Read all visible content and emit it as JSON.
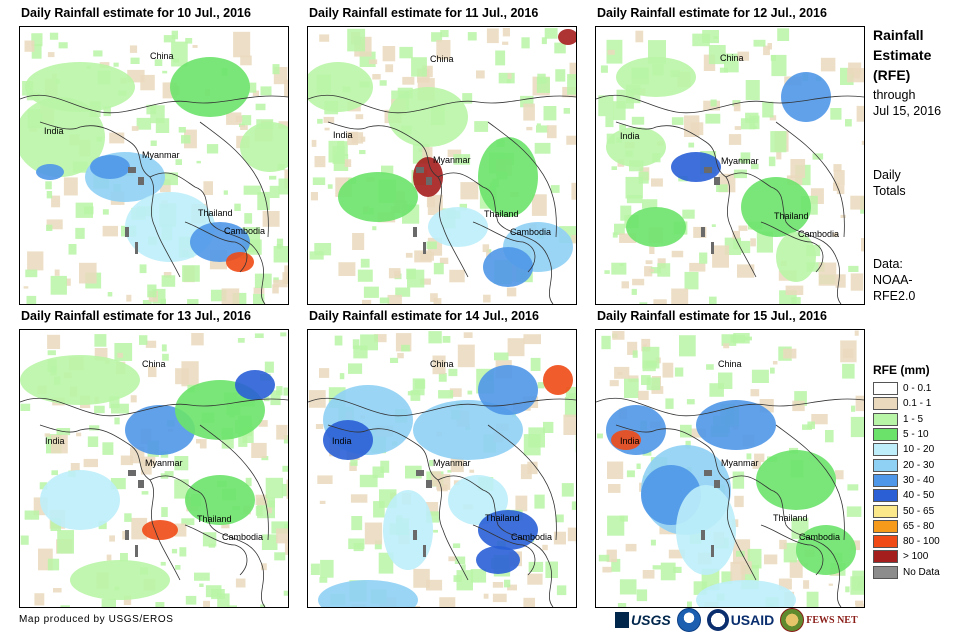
{
  "panels": [
    {
      "title": "Daily Rainfall estimate for 10 Jul., 2016",
      "labels": {
        "china": "China",
        "india": "India",
        "myanmar": "Myanmar",
        "thailand": "Thailand",
        "cambodia": "Cambodia"
      }
    },
    {
      "title": "Daily Rainfall estimate for 11 Jul., 2016",
      "labels": {
        "china": "China",
        "india": "India",
        "myanmar": "Myanmar",
        "thailand": "Thailand",
        "cambodia": "Cambodia"
      }
    },
    {
      "title": "Daily Rainfall estimate for 12 Jul., 2016",
      "labels": {
        "china": "China",
        "india": "India",
        "myanmar": "Myanmar",
        "thailand": "Thailand",
        "cambodia": "Cambodia"
      }
    },
    {
      "title": "Daily Rainfall estimate for 13 Jul., 2016",
      "labels": {
        "china": "China",
        "india": "India",
        "myanmar": "Myanmar",
        "thailand": "Thailand",
        "cambodia": "Cambodia"
      }
    },
    {
      "title": "Daily Rainfall estimate for 14 Jul., 2016",
      "labels": {
        "china": "China",
        "india": "India",
        "myanmar": "Myanmar",
        "thailand": "Thailand",
        "cambodia": "Cambodia"
      }
    },
    {
      "title": "Daily Rainfall estimate for 15 Jul., 2016",
      "labels": {
        "china": "China",
        "india": "India",
        "myanmar": "Myanmar",
        "thailand": "Thailand",
        "cambodia": "Cambodia"
      }
    }
  ],
  "side": {
    "title_line1": "Rainfall",
    "title_line2": "Estimate",
    "title_line3": "(RFE)",
    "through": "through",
    "date": "Jul 15, 2016",
    "daily": "Daily",
    "totals": "Totals",
    "data_label": "Data:",
    "source_line1": "NOAA-",
    "source_line2": "RFE2.0"
  },
  "legend": {
    "title": "RFE (mm)",
    "items": [
      {
        "label": "0 - 0.1",
        "color": "#ffffff"
      },
      {
        "label": "0.1 - 1",
        "color": "#ead9bd"
      },
      {
        "label": "1 - 5",
        "color": "#b9f5a6"
      },
      {
        "label": "5 - 10",
        "color": "#6be36b"
      },
      {
        "label": "10 - 20",
        "color": "#bdeefa"
      },
      {
        "label": "20 - 30",
        "color": "#8fd0f5"
      },
      {
        "label": "30 - 40",
        "color": "#4f97e8"
      },
      {
        "label": "40 - 50",
        "color": "#2a5fd6"
      },
      {
        "label": "50 - 65",
        "color": "#fae88a"
      },
      {
        "label": "65 - 80",
        "color": "#f59a1a"
      },
      {
        "label": "80 - 100",
        "color": "#f04a16"
      },
      {
        "label": "> 100",
        "color": "#a51e1e"
      },
      {
        "label": "No Data",
        "color": "#8c8c8c"
      }
    ]
  },
  "credit": "Map produced by USGS/EROS",
  "logos": {
    "usgs": "USGS",
    "usaid": "USAID",
    "fews": "FEWS NET"
  }
}
